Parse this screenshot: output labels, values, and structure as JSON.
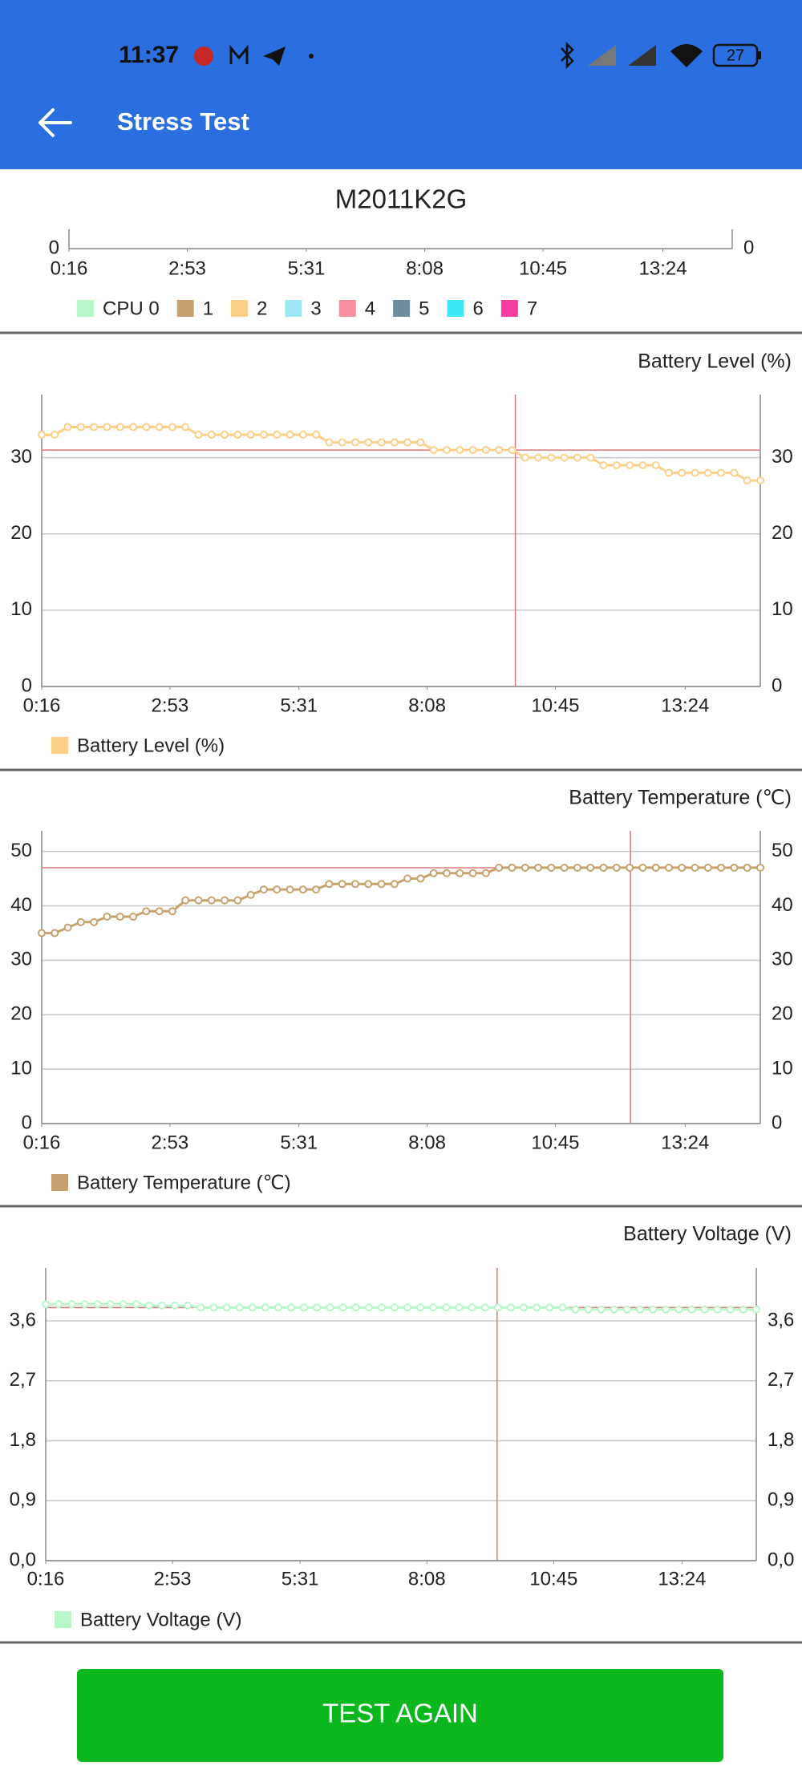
{
  "status_bar": {
    "time": "11:37",
    "battery": "27"
  },
  "app_bar": {
    "title": "Stress Test"
  },
  "chart_data": [
    {
      "type": "line",
      "title": "M2011K2G",
      "xlim": [
        16,
        896
      ],
      "xticks": [
        {
          "value": 16,
          "label": "0:16"
        },
        {
          "value": 173,
          "label": "2:53"
        },
        {
          "value": 331,
          "label": "5:31"
        },
        {
          "value": 488,
          "label": "8:08"
        },
        {
          "value": 645,
          "label": "10:45"
        },
        {
          "value": 804,
          "label": "13:24"
        }
      ],
      "yticks": [
        0
      ],
      "series": [
        {
          "name": "CPU 0",
          "color": "#b9f6ca"
        },
        {
          "name": "1",
          "color": "#c8a26e"
        },
        {
          "name": "2",
          "color": "#fdd08a"
        },
        {
          "name": "3",
          "color": "#9ee8f5"
        },
        {
          "name": "4",
          "color": "#f78fa0"
        },
        {
          "name": "5",
          "color": "#6f8c9c"
        },
        {
          "name": "6",
          "color": "#3ce8f5"
        },
        {
          "name": "7",
          "color": "#f53ca0"
        }
      ]
    },
    {
      "type": "line",
      "title": "Battery Level (%)",
      "x": [
        16,
        32,
        48,
        64,
        80,
        96,
        112,
        128,
        144,
        160,
        176,
        192,
        208,
        224,
        240,
        256,
        272,
        288,
        304,
        320,
        336,
        352,
        368,
        384,
        400,
        416,
        432,
        448,
        464,
        480,
        496,
        512,
        528,
        544,
        560,
        576,
        592,
        608,
        624,
        640,
        656,
        672,
        688,
        704,
        720,
        736,
        752,
        768,
        784,
        800,
        816,
        832,
        848,
        864,
        880,
        896
      ],
      "series": [
        {
          "name": "Battery Level (%)",
          "color": "#fdd08a",
          "values": [
            33,
            33,
            34,
            34,
            34,
            34,
            34,
            34,
            34,
            34,
            34,
            34,
            33,
            33,
            33,
            33,
            33,
            33,
            33,
            33,
            33,
            33,
            32,
            32,
            32,
            32,
            32,
            32,
            32,
            32,
            31,
            31,
            31,
            31,
            31,
            31,
            31,
            30,
            30,
            30,
            30,
            30,
            30,
            29,
            29,
            29,
            29,
            29,
            28,
            28,
            28,
            28,
            28,
            28,
            27,
            27
          ]
        }
      ],
      "xlim": [
        16,
        896
      ],
      "xticks": [
        {
          "value": 16,
          "label": "0:16"
        },
        {
          "value": 173,
          "label": "2:53"
        },
        {
          "value": 331,
          "label": "5:31"
        },
        {
          "value": 488,
          "label": "8:08"
        },
        {
          "value": 645,
          "label": "10:45"
        },
        {
          "value": 804,
          "label": "13:24"
        }
      ],
      "ylim": [
        0,
        37
      ],
      "yticks": [
        0,
        10,
        20,
        30
      ],
      "grid": true,
      "highlight": {
        "x": 596,
        "y": 31
      }
    },
    {
      "type": "line",
      "title": "Battery Temperature (℃)",
      "x": [
        16,
        32,
        48,
        64,
        80,
        96,
        112,
        128,
        144,
        160,
        176,
        192,
        208,
        224,
        240,
        256,
        272,
        288,
        304,
        320,
        336,
        352,
        368,
        384,
        400,
        416,
        432,
        448,
        464,
        480,
        496,
        512,
        528,
        544,
        560,
        576,
        592,
        608,
        624,
        640,
        656,
        672,
        688,
        704,
        720,
        736,
        752,
        768,
        784,
        800,
        816,
        832,
        848,
        864,
        880,
        896
      ],
      "series": [
        {
          "name": "Battery Temperature (℃)",
          "color": "#c8a26e",
          "values": [
            35,
            35,
            36,
            37,
            37,
            38,
            38,
            38,
            39,
            39,
            39,
            41,
            41,
            41,
            41,
            41,
            42,
            43,
            43,
            43,
            43,
            43,
            44,
            44,
            44,
            44,
            44,
            44,
            45,
            45,
            46,
            46,
            46,
            46,
            46,
            47,
            47,
            47,
            47,
            47,
            47,
            47,
            47,
            47,
            47,
            47,
            47,
            47,
            47,
            47,
            47,
            47,
            47,
            47,
            47,
            47
          ]
        }
      ],
      "xlim": [
        16,
        896
      ],
      "xticks": [
        {
          "value": 16,
          "label": "0:16"
        },
        {
          "value": 173,
          "label": "2:53"
        },
        {
          "value": 331,
          "label": "5:31"
        },
        {
          "value": 488,
          "label": "8:08"
        },
        {
          "value": 645,
          "label": "10:45"
        },
        {
          "value": 804,
          "label": "13:24"
        }
      ],
      "ylim": [
        0,
        52
      ],
      "yticks": [
        0,
        10,
        20,
        30,
        40,
        50
      ],
      "grid": true,
      "highlight": {
        "x": 737,
        "y": 47
      }
    },
    {
      "type": "line",
      "title": "Battery Voltage (V)",
      "x": [
        16,
        32,
        48,
        64,
        80,
        96,
        112,
        128,
        144,
        160,
        176,
        192,
        208,
        224,
        240,
        256,
        272,
        288,
        304,
        320,
        336,
        352,
        368,
        384,
        400,
        416,
        432,
        448,
        464,
        480,
        496,
        512,
        528,
        544,
        560,
        576,
        592,
        608,
        624,
        640,
        656,
        672,
        688,
        704,
        720,
        736,
        752,
        768,
        784,
        800,
        816,
        832,
        848,
        864,
        880,
        896
      ],
      "series": [
        {
          "name": "Battery Voltage (V)",
          "color": "#b9f6ca",
          "values": [
            3.85,
            3.85,
            3.85,
            3.85,
            3.85,
            3.85,
            3.85,
            3.85,
            3.83,
            3.83,
            3.83,
            3.83,
            3.8,
            3.8,
            3.8,
            3.8,
            3.8,
            3.8,
            3.8,
            3.8,
            3.8,
            3.8,
            3.8,
            3.8,
            3.8,
            3.8,
            3.8,
            3.8,
            3.8,
            3.8,
            3.8,
            3.8,
            3.8,
            3.8,
            3.8,
            3.8,
            3.8,
            3.8,
            3.8,
            3.8,
            3.8,
            3.77,
            3.77,
            3.77,
            3.77,
            3.77,
            3.77,
            3.77,
            3.77,
            3.77,
            3.77,
            3.77,
            3.77,
            3.77,
            3.77,
            3.77
          ]
        }
      ],
      "xlim": [
        16,
        896
      ],
      "xticks": [
        {
          "value": 16,
          "label": "0:16"
        },
        {
          "value": 173,
          "label": "2:53"
        },
        {
          "value": 331,
          "label": "5:31"
        },
        {
          "value": 488,
          "label": "8:08"
        },
        {
          "value": 645,
          "label": "10:45"
        },
        {
          "value": 804,
          "label": "13:24"
        }
      ],
      "ylim": [
        0,
        4.25
      ],
      "yticks": [
        {
          "value": 0,
          "label": "0,0"
        },
        {
          "value": 0.9,
          "label": "0,9"
        },
        {
          "value": 1.8,
          "label": "1,8"
        },
        {
          "value": 2.7,
          "label": "2,7"
        },
        {
          "value": 3.6,
          "label": "3,6"
        }
      ],
      "grid": true,
      "highlight": {
        "x": 575,
        "y": 3.8
      }
    }
  ],
  "button": {
    "label": "TEST AGAIN"
  }
}
